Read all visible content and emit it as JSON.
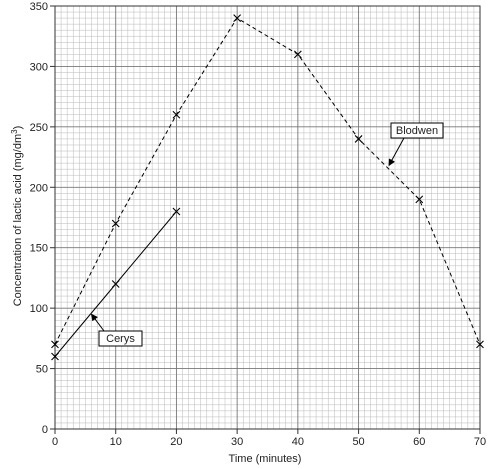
{
  "chart_data": {
    "type": "line",
    "xlabel": "Time (minutes)",
    "ylabel": "Concentration of lactic acid (mg/dm",
    "ylabel_superscript": "3",
    "ylabel_close": ")",
    "xlim": [
      0,
      70
    ],
    "ylim": [
      0,
      350
    ],
    "x_ticks": [
      "0",
      "10",
      "20",
      "30",
      "40",
      "50",
      "60",
      "70"
    ],
    "y_ticks": [
      "0",
      "50",
      "100",
      "150",
      "200",
      "250",
      "300",
      "350"
    ],
    "grid": true,
    "series": [
      {
        "name": "Cerys",
        "style": "solid",
        "marker": "x",
        "color": "#000000",
        "x": [
          0,
          10,
          20
        ],
        "y": [
          60,
          120,
          180
        ]
      },
      {
        "name": "Blodwen",
        "style": "dashed",
        "marker": "x",
        "color": "#000000",
        "x": [
          0,
          10,
          20,
          30,
          40,
          50,
          60,
          70
        ],
        "y": [
          70,
          170,
          260,
          340,
          310,
          240,
          190,
          70
        ]
      }
    ],
    "annotations": [
      {
        "text": "Cerys",
        "series": "Cerys",
        "pointer_to": [
          6,
          95
        ]
      },
      {
        "text": "Blodwen",
        "series": "Blodwen",
        "pointer_to": [
          55,
          218
        ]
      }
    ]
  }
}
